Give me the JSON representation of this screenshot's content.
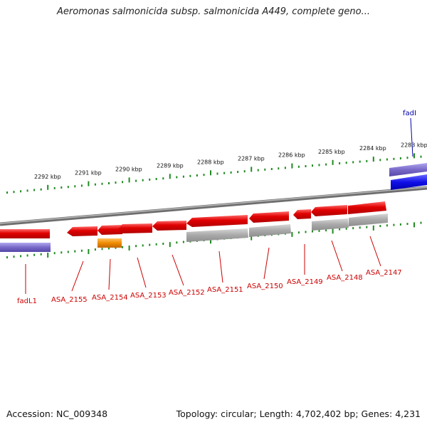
{
  "title": "Aeromonas salmonicida subsp. salmonicida A449, complete geno...",
  "accession": "Accession: NC_009348",
  "stats": "Topology: circular; Length: 4,702,402 bp; Genes: 4,231",
  "colors": {
    "backbone": "#808080",
    "tick": "#1f8a1f",
    "cds_red": "#e00000",
    "gene_gray": "#a8a8a8",
    "orange": "#f08c00",
    "purple": "#7868c8",
    "blue": "#1010e8",
    "label_red": "#cc0000",
    "label_blue": "#0000aa"
  },
  "scale_labels": [
    "2292 kbp",
    "2291 kbp",
    "2290 kbp",
    "2289 kbp",
    "2288 kbp",
    "2287 kbp",
    "2286 kbp",
    "2285 kbp",
    "2284 kbp",
    "2283 kbp"
  ],
  "features": [
    {
      "label": "fadL1",
      "track": "outer-left"
    },
    {
      "label": "ASA_2155"
    },
    {
      "label": "ASA_2154"
    },
    {
      "label": "ASA_2153"
    },
    {
      "label": "ASA_2152"
    },
    {
      "label": "ASA_2151"
    },
    {
      "label": "ASA_2150"
    },
    {
      "label": "ASA_2149"
    },
    {
      "label": "ASA_2148"
    },
    {
      "label": "ASA_2147"
    },
    {
      "label": "fadI",
      "track": "outer-right"
    }
  ]
}
